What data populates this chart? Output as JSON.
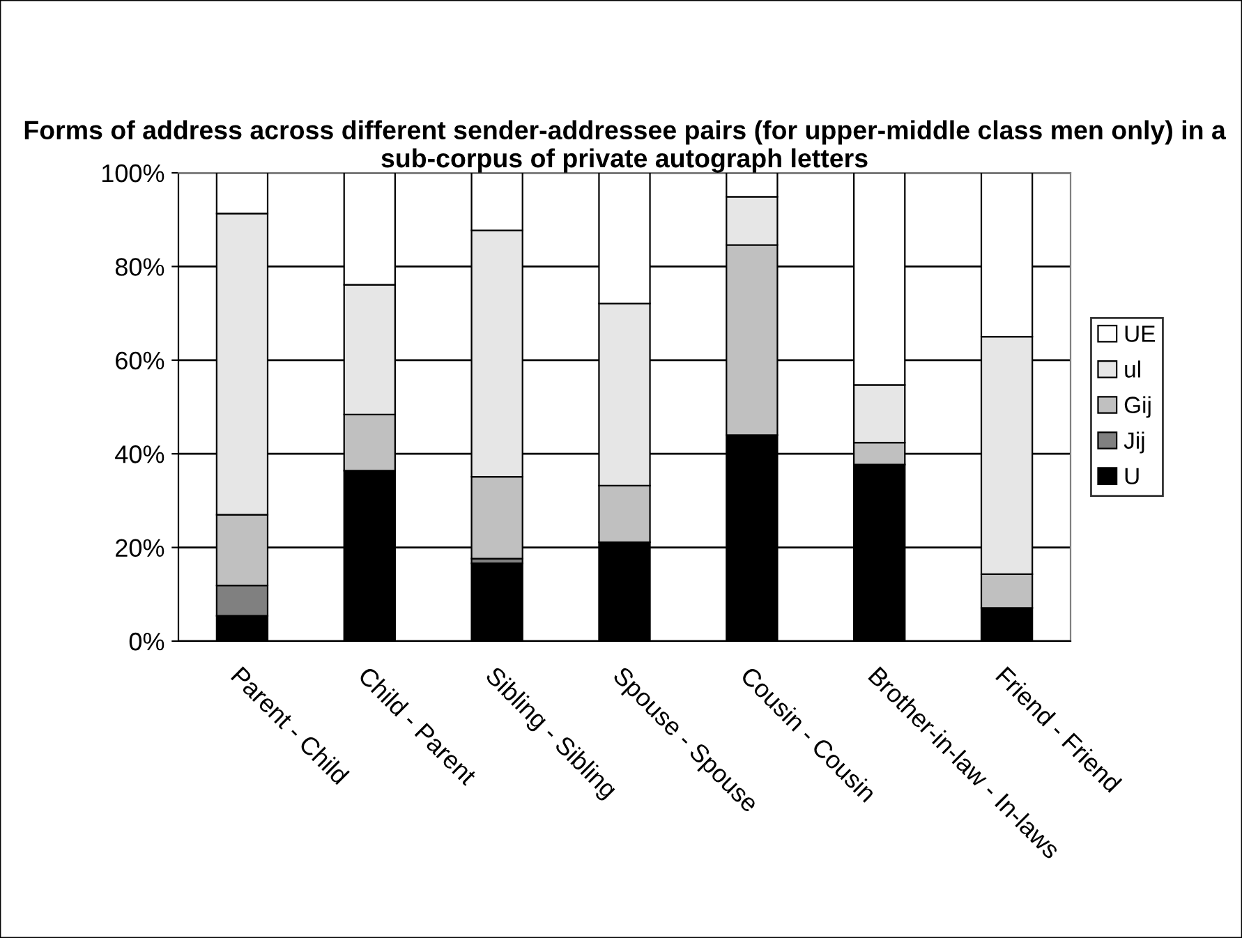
{
  "chart_data": {
    "type": "bar",
    "stacked": true,
    "title": "Forms of address across different sender-addressee pairs (for upper-middle class men only) in a sub-corpus of private autograph letters",
    "categories": [
      "Parent - Child",
      "Child - Parent",
      "Sibling - Sibling",
      "Spouse - Spouse",
      "Cousin - Cousin",
      "Brother-in-law - In-laws",
      "Friend - Friend"
    ],
    "series": [
      {
        "name": "U",
        "color": "#000000",
        "values": [
          5.4,
          36.4,
          16.6,
          21.1,
          44.0,
          37.7,
          7.1
        ]
      },
      {
        "name": "Jij",
        "color": "#808080",
        "values": [
          6.5,
          0,
          1.0,
          0,
          0,
          0,
          0
        ]
      },
      {
        "name": "Gij",
        "color": "#c0c0c0",
        "values": [
          15.1,
          12.0,
          17.5,
          12.1,
          40.6,
          4.7,
          7.2
        ]
      },
      {
        "name": "ul",
        "color": "#e6e6e6",
        "values": [
          64.3,
          27.7,
          52.6,
          38.9,
          10.3,
          12.3,
          50.7
        ]
      },
      {
        "name": "UE",
        "color": "#ffffff",
        "values": [
          8.7,
          23.9,
          12.3,
          27.9,
          5.1,
          45.3,
          35.0
        ]
      }
    ],
    "ylim": [
      0,
      100
    ],
    "yticks": [
      {
        "value": 0,
        "label": "0%"
      },
      {
        "value": 20,
        "label": "20%"
      },
      {
        "value": 40,
        "label": "40%"
      },
      {
        "value": 60,
        "label": "60%"
      },
      {
        "value": 80,
        "label": "80%"
      },
      {
        "value": 100,
        "label": "100%"
      }
    ],
    "grid": "y",
    "legend": "right"
  }
}
